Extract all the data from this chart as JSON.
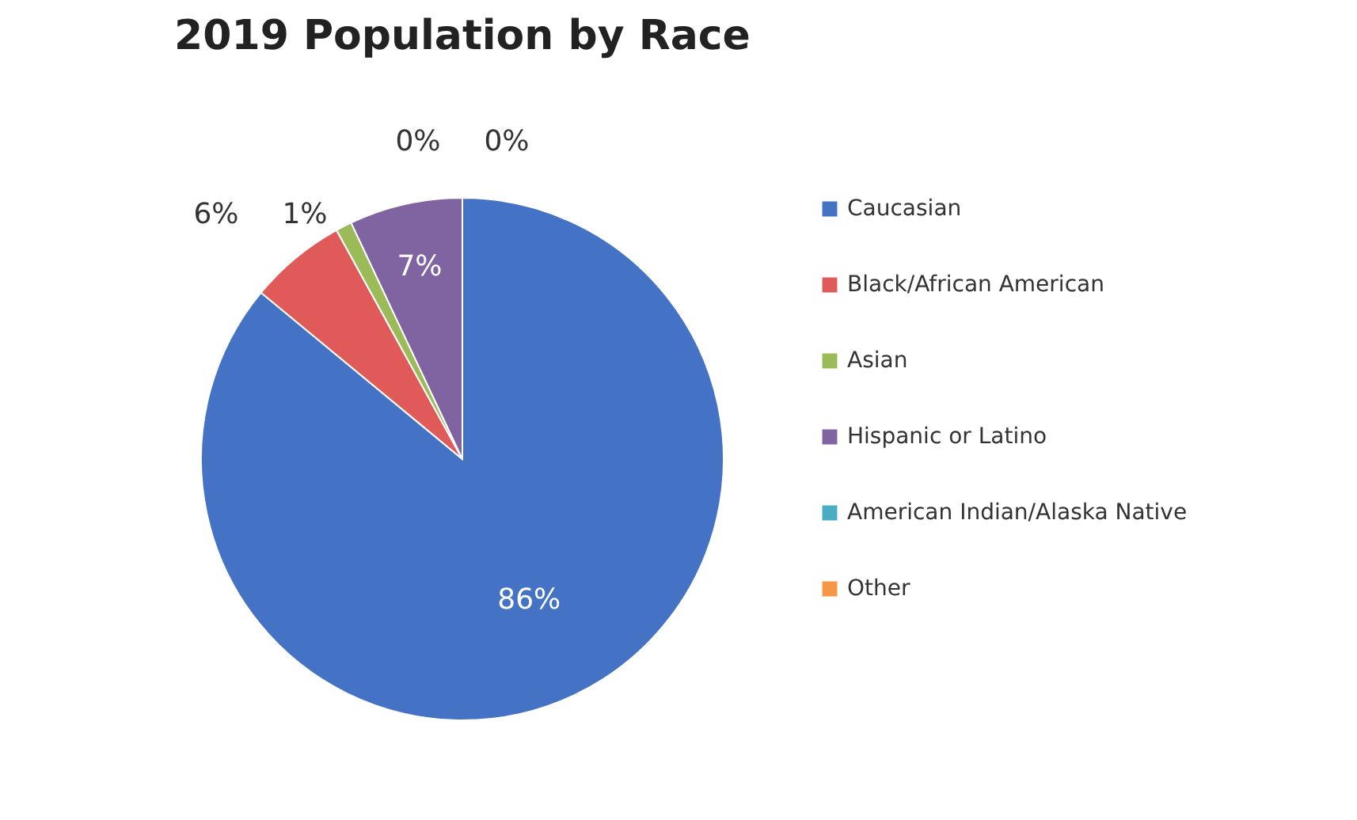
{
  "chart_data": {
    "type": "pie",
    "title": "2019 Population by Race",
    "categories": [
      "Caucasian",
      "Black/African American",
      "Asian",
      "Hispanic or Latino",
      "American Indian/Alaska Native",
      "Other"
    ],
    "values": [
      86,
      6,
      1,
      7,
      0,
      0
    ],
    "colors": [
      "#4472c4",
      "#e05a5a",
      "#9bbb59",
      "#8064a2",
      "#4bacc6",
      "#f79646"
    ],
    "value_labels": [
      "86%",
      "6%",
      "1%",
      "7%",
      "0%",
      "0%"
    ],
    "legend": "right"
  }
}
